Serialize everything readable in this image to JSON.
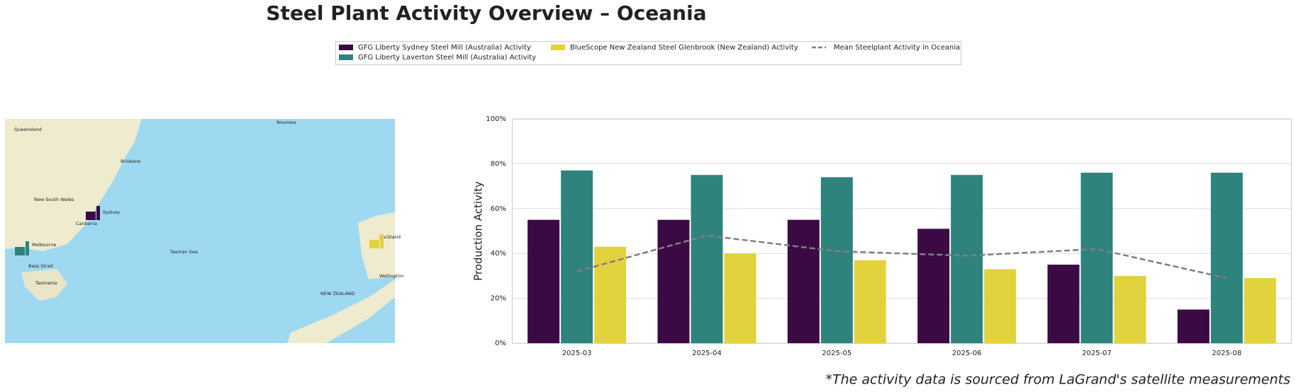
{
  "title": "Steel Plant Activity Overview – Oceania",
  "footnote": "*The activity data is sourced from LaGrand's satellite measurements",
  "map": {
    "labels": [
      "Brisbane",
      "Sydney",
      "Canberra",
      "Melbourne",
      "Bass Strait",
      "Tasmania",
      "Tasman Sea",
      "NEW ZEALAND",
      "Auckland",
      "Wellington",
      "Noumea",
      "New South Wales",
      "Queensland"
    ]
  },
  "chart_data": {
    "type": "bar",
    "ylabel": "Production Activity",
    "categories": [
      "2025-03",
      "2025-04",
      "2025-05",
      "2025-06",
      "2025-07",
      "2025-08"
    ],
    "series": [
      {
        "name": "GFG Liberty Sydney Steel Mill (Australia) Activity",
        "color": "#3b0a45",
        "values": [
          55,
          55,
          55,
          51,
          35,
          15
        ]
      },
      {
        "name": "GFG Liberty Laverton Steel Mill (Australia) Activity",
        "color": "#2e837c",
        "values": [
          77,
          75,
          74,
          75,
          76,
          76
        ]
      },
      {
        "name": "BlueScope New Zealand Steel Glenbrook (New Zealand) Activity",
        "color": "#e2d23e",
        "values": [
          43,
          40,
          37,
          33,
          30,
          29
        ]
      },
      {
        "name": "Mean Steelplant Activity in Oceania",
        "color": "#808080",
        "type": "line",
        "dashed": true,
        "values": [
          32,
          48,
          41,
          39,
          42,
          29
        ]
      }
    ],
    "ylim": [
      0,
      100
    ],
    "yticks": [
      {
        "value": 0,
        "label": "0%"
      },
      {
        "value": 20,
        "label": "20%"
      },
      {
        "value": 40,
        "label": "40%"
      },
      {
        "value": 60,
        "label": "60%"
      },
      {
        "value": 80,
        "label": "80%"
      },
      {
        "value": 100,
        "label": "100%"
      }
    ],
    "grid": true
  }
}
